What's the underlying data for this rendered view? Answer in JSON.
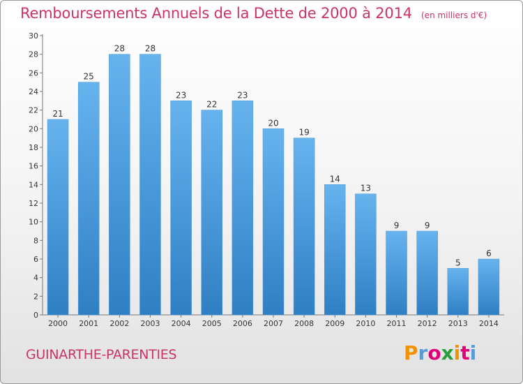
{
  "chart_data": {
    "type": "bar",
    "title": "Remboursements Annuels de la Dette de 2000 à 2014",
    "unit_label": "(en milliers d'€)",
    "categories": [
      "2000",
      "2001",
      "2002",
      "2003",
      "2004",
      "2005",
      "2006",
      "2007",
      "2008",
      "2009",
      "2010",
      "2011",
      "2012",
      "2013",
      "2014"
    ],
    "values": [
      21,
      25,
      28,
      28,
      23,
      22,
      23,
      20,
      19,
      14,
      13,
      9,
      9,
      5,
      6
    ],
    "ylim": [
      0,
      30
    ],
    "yticks": [
      0,
      2,
      4,
      6,
      8,
      10,
      12,
      14,
      16,
      18,
      20,
      22,
      24,
      26,
      28,
      30
    ],
    "grid": false,
    "legend": "none",
    "bar_color_top": "#66b3ee",
    "bar_color_bottom": "#2f7fc4"
  },
  "footer": {
    "commune": "GUINARTHE-PARENTIES",
    "logo_letters": [
      "P",
      "r",
      "o",
      "x",
      "i",
      "t",
      "i"
    ],
    "logo_colors": [
      "#f39200",
      "#5b9bd5",
      "#e2007a",
      "#2e9e3c",
      "#f39200",
      "#e2007a",
      "#5b9bd5"
    ]
  },
  "colors": {
    "title": "#cc3366"
  }
}
